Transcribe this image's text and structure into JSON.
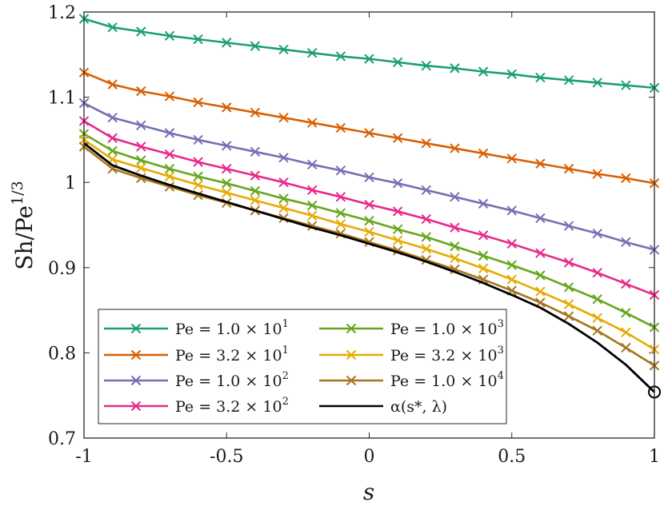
{
  "chart_data": {
    "type": "line",
    "title": "",
    "xlabel": "s",
    "ylabel": "Sh/Pe",
    "ylabel_sup": "1/3",
    "xlim": [
      -1,
      1
    ],
    "ylim": [
      0.7,
      1.2
    ],
    "xticks": [
      -1,
      -0.5,
      0,
      0.5,
      1
    ],
    "xtick_labels": [
      "-1",
      "-0.5",
      "0",
      "0.5",
      "1"
    ],
    "yticks": [
      0.7,
      0.8,
      0.9,
      1.0,
      1.1,
      1.2
    ],
    "ytick_labels": [
      "0.7",
      "0.8",
      "0.9",
      "1",
      "1.1",
      "1.2"
    ],
    "x": [
      -1,
      -0.9,
      -0.8,
      -0.7,
      -0.6,
      -0.5,
      -0.4,
      -0.3,
      -0.2,
      -0.1,
      0,
      0.1,
      0.2,
      0.3,
      0.4,
      0.5,
      0.6,
      0.7,
      0.8,
      0.9,
      1
    ],
    "series": [
      {
        "name": "Pe = 1.0 × 10",
        "sup": "1",
        "color": "#1b9e77",
        "marker": "x",
        "values": [
          1.192,
          1.182,
          1.177,
          1.172,
          1.168,
          1.164,
          1.16,
          1.156,
          1.152,
          1.148,
          1.145,
          1.141,
          1.137,
          1.134,
          1.13,
          1.127,
          1.123,
          1.12,
          1.117,
          1.114,
          1.111
        ]
      },
      {
        "name": "Pe = 3.2 × 10",
        "sup": "1",
        "color": "#d95f02",
        "marker": "x",
        "values": [
          1.129,
          1.115,
          1.107,
          1.101,
          1.094,
          1.088,
          1.082,
          1.076,
          1.07,
          1.064,
          1.058,
          1.052,
          1.046,
          1.04,
          1.034,
          1.028,
          1.022,
          1.016,
          1.01,
          1.005,
          0.999
        ]
      },
      {
        "name": "Pe = 1.0 × 10",
        "sup": "2",
        "color": "#7570b3",
        "marker": "x",
        "values": [
          1.093,
          1.076,
          1.067,
          1.058,
          1.05,
          1.043,
          1.036,
          1.029,
          1.021,
          1.014,
          1.006,
          0.999,
          0.991,
          0.983,
          0.975,
          0.967,
          0.958,
          0.949,
          0.94,
          0.93,
          0.921
        ]
      },
      {
        "name": "Pe = 3.2 × 10",
        "sup": "2",
        "color": "#e7298a",
        "marker": "x",
        "values": [
          1.072,
          1.052,
          1.042,
          1.033,
          1.024,
          1.016,
          1.008,
          1.0,
          0.991,
          0.983,
          0.974,
          0.966,
          0.957,
          0.947,
          0.938,
          0.928,
          0.917,
          0.906,
          0.894,
          0.881,
          0.868
        ]
      },
      {
        "name": "Pe = 1.0 × 10",
        "sup": "3",
        "color": "#66a61e",
        "marker": "x",
        "values": [
          1.057,
          1.037,
          1.026,
          1.016,
          1.007,
          0.999,
          0.99,
          0.981,
          0.973,
          0.964,
          0.955,
          0.945,
          0.936,
          0.925,
          0.914,
          0.903,
          0.891,
          0.877,
          0.863,
          0.847,
          0.83
        ]
      },
      {
        "name": "Pe = 3.2 × 10",
        "sup": "3",
        "color": "#e6ab02",
        "marker": "x",
        "values": [
          1.05,
          1.027,
          1.017,
          1.007,
          0.997,
          0.988,
          0.979,
          0.97,
          0.961,
          0.951,
          0.942,
          0.932,
          0.922,
          0.911,
          0.899,
          0.886,
          0.872,
          0.857,
          0.841,
          0.824,
          0.804
        ]
      },
      {
        "name": "Pe = 1.0 × 10",
        "sup": "4",
        "color": "#a6761d",
        "marker": "x",
        "values": [
          1.042,
          1.016,
          1.005,
          0.995,
          0.985,
          0.976,
          0.967,
          0.958,
          0.949,
          0.94,
          0.93,
          0.92,
          0.909,
          0.898,
          0.886,
          0.873,
          0.859,
          0.843,
          0.826,
          0.806,
          0.785
        ]
      },
      {
        "name": "α(s*, λ)",
        "sup": "",
        "color": "#000000",
        "marker": "none",
        "values": [
          1.046,
          1.02,
          1.008,
          0.997,
          0.987,
          0.977,
          0.967,
          0.957,
          0.947,
          0.938,
          0.928,
          0.918,
          0.907,
          0.895,
          0.882,
          0.868,
          0.853,
          0.834,
          0.812,
          0.786,
          0.754
        ]
      }
    ],
    "annotations": [
      {
        "type": "circle-marker",
        "x": 1,
        "y": 0.754,
        "series": "α(s*, λ)"
      }
    ],
    "legend": {
      "location": "bottom-left",
      "columns": 2
    }
  }
}
